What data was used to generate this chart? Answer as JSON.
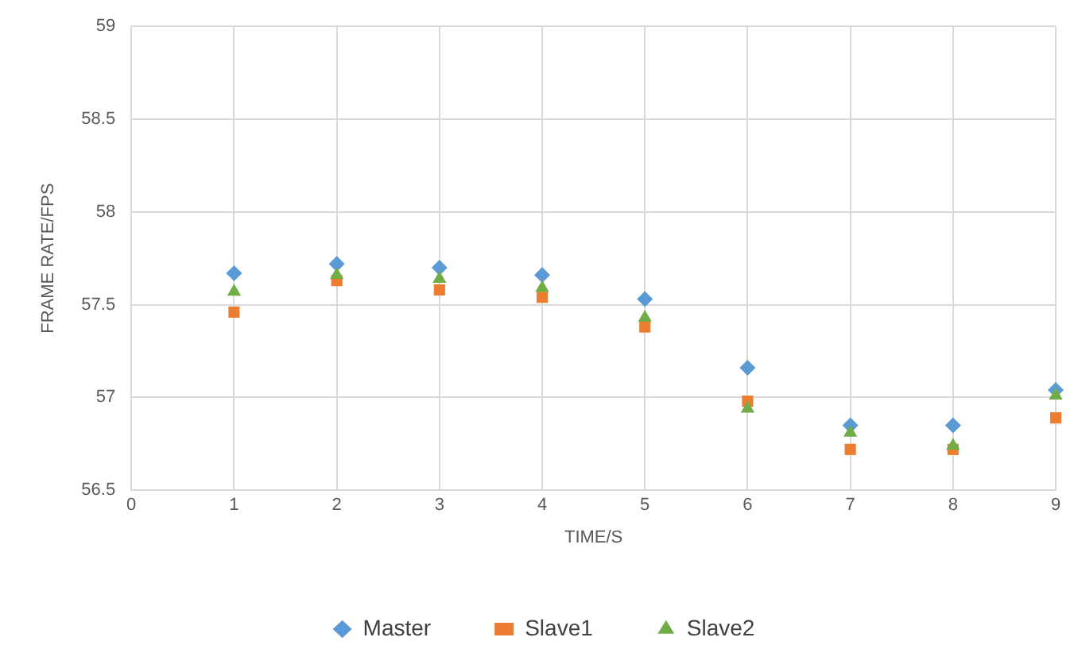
{
  "chart_data": {
    "type": "scatter",
    "xlabel": "TIME/S",
    "ylabel": "FRAME RATE/FPS",
    "x": [
      1,
      2,
      3,
      4,
      5,
      6,
      7,
      8,
      9
    ],
    "series": [
      {
        "name": "Master",
        "color": "#5b9bd5",
        "marker": "diamond",
        "values": [
          57.67,
          57.72,
          57.7,
          57.66,
          57.53,
          57.16,
          56.85,
          56.85,
          57.04
        ]
      },
      {
        "name": "Slave1",
        "color": "#ed7d31",
        "marker": "square",
        "values": [
          57.46,
          57.63,
          57.58,
          57.54,
          57.38,
          56.98,
          56.72,
          56.72,
          56.89
        ]
      },
      {
        "name": "Slave2",
        "color": "#70ad47",
        "marker": "triangle",
        "values": [
          57.57,
          57.66,
          57.64,
          57.59,
          57.43,
          56.94,
          56.81,
          56.74,
          57.01
        ]
      }
    ],
    "xlim": [
      0,
      9
    ],
    "xticks": [
      0,
      1,
      2,
      3,
      4,
      5,
      6,
      7,
      8,
      9
    ],
    "ylim": [
      56.5,
      59
    ],
    "yticks": [
      56.5,
      57,
      57.5,
      58,
      58.5,
      59
    ],
    "grid": true,
    "legend": "bottom"
  }
}
